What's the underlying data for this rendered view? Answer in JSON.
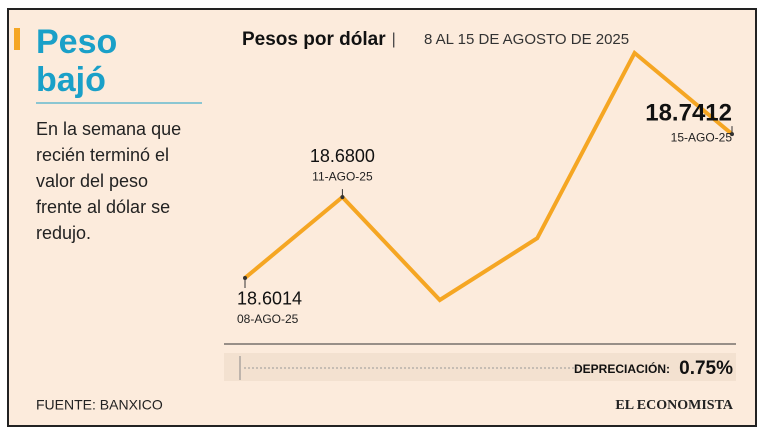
{
  "header": {
    "title_lines": [
      "Peso",
      "bajó"
    ],
    "description": "En la semana que recién terminó el valor del peso frente al dólar se redujo."
  },
  "chart_data": {
    "type": "line",
    "title": "Pesos por dólar",
    "subtitle": "8 AL 15 DE AGOSTO DE 2025",
    "categories": [
      "08-AGO-25",
      "11-AGO-25",
      null,
      null,
      null,
      "15-AGO-25"
    ],
    "values": [
      18.6014,
      18.68,
      18.58,
      18.64,
      18.82,
      18.7412
    ],
    "value_labels": [
      "18.6014",
      "18.6800",
      null,
      null,
      null,
      "18.7412"
    ],
    "color": "#f5a623"
  },
  "summary": {
    "label": "DEPRECIACIÓN:",
    "value": 0.75,
    "value_label": "0.75%"
  },
  "footer": {
    "source": "FUENTE: BANXICO",
    "brand": "EL ECONOMISTA"
  }
}
